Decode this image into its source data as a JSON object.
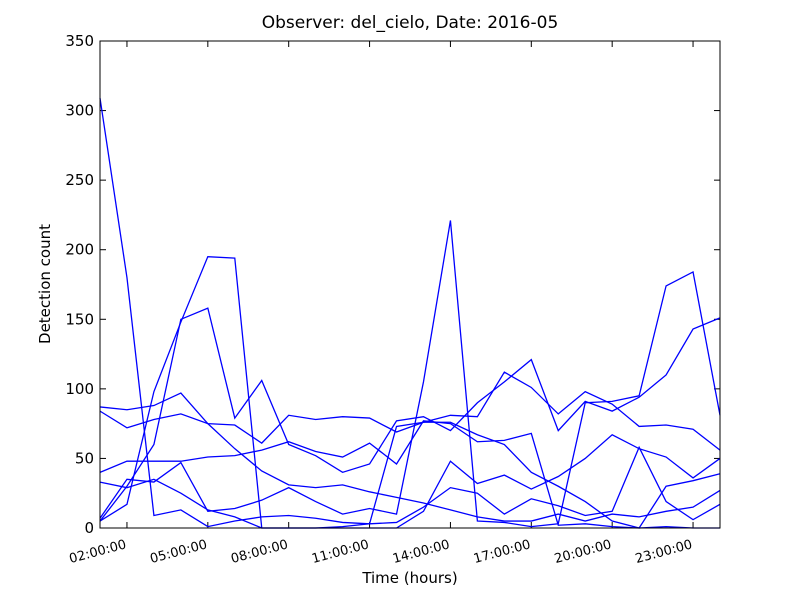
{
  "chart_data": {
    "type": "line",
    "title": "Observer: del_cielo, Date: 2016-05",
    "x_label": "Time (hours)",
    "y_label": "Detection count",
    "x": [
      1,
      2,
      3,
      4,
      5,
      6,
      7,
      8,
      9,
      10,
      11,
      12,
      13,
      14,
      15,
      16,
      17,
      18,
      19,
      20,
      21,
      22,
      23,
      24
    ],
    "xlim": [
      1,
      24
    ],
    "xticks": [
      {
        "value": 2,
        "label": "02:00:00"
      },
      {
        "value": 5,
        "label": "05:00:00"
      },
      {
        "value": 8,
        "label": "08:00:00"
      },
      {
        "value": 11,
        "label": "11:00:00"
      },
      {
        "value": 14,
        "label": "14:00:00"
      },
      {
        "value": 17,
        "label": "17:00:00"
      },
      {
        "value": 20,
        "label": "20:00:00"
      },
      {
        "value": 23,
        "label": "23:00:00"
      }
    ],
    "ylim": [
      0,
      350
    ],
    "yticks": [
      0,
      50,
      100,
      150,
      200,
      250,
      300,
      350
    ],
    "series": [
      {
        "color": "#0000ff",
        "values": [
          309,
          180,
          9,
          13,
          1,
          5,
          8,
          9,
          7,
          4,
          3,
          4,
          15,
          29,
          25,
          10,
          21,
          16,
          9,
          12,
          58,
          19,
          6,
          17
        ]
      },
      {
        "color": "#0000ff",
        "values": [
          5,
          17,
          98,
          148,
          195,
          194,
          0,
          0,
          0,
          0,
          0,
          0,
          12,
          48,
          32,
          38,
          28,
          37,
          50,
          67,
          57,
          51,
          36,
          50
        ]
      },
      {
        "color": "#0000ff",
        "values": [
          7,
          35,
          33,
          47,
          12,
          14,
          20,
          29,
          19,
          10,
          14,
          10,
          105,
          221,
          5,
          4,
          1,
          3,
          90,
          91,
          95,
          174,
          184,
          81
        ]
      },
      {
        "color": "#0000ff",
        "values": [
          5,
          30,
          60,
          150,
          158,
          79,
          106,
          60,
          52,
          40,
          46,
          77,
          80,
          70,
          90,
          105,
          121,
          70,
          91,
          84,
          94,
          110,
          143,
          151
        ]
      },
      {
        "color": "#0000ff",
        "values": [
          87,
          85,
          88,
          97,
          75,
          57,
          41,
          31,
          29,
          31,
          26,
          22,
          18,
          13,
          8,
          5,
          5,
          10,
          5,
          10,
          8,
          12,
          15,
          27
        ]
      },
      {
        "color": "#0000ff",
        "values": [
          84,
          72,
          78,
          82,
          75,
          74,
          61,
          81,
          78,
          80,
          79,
          69,
          76,
          81,
          80,
          112,
          101,
          82,
          98,
          89,
          73,
          74,
          71,
          56
        ]
      },
      {
        "color": "#0000ff",
        "values": [
          40,
          48,
          48,
          48,
          51,
          52,
          56,
          62,
          55,
          51,
          61,
          46,
          77,
          75,
          62,
          63,
          68,
          2,
          3,
          1,
          0,
          1,
          0,
          0
        ]
      },
      {
        "color": "#0000ff",
        "values": [
          33,
          29,
          35,
          25,
          13,
          8,
          0,
          0,
          0,
          1,
          3,
          73,
          76,
          76,
          67,
          60,
          40,
          30,
          19,
          5,
          0,
          30,
          34,
          39
        ]
      }
    ]
  }
}
